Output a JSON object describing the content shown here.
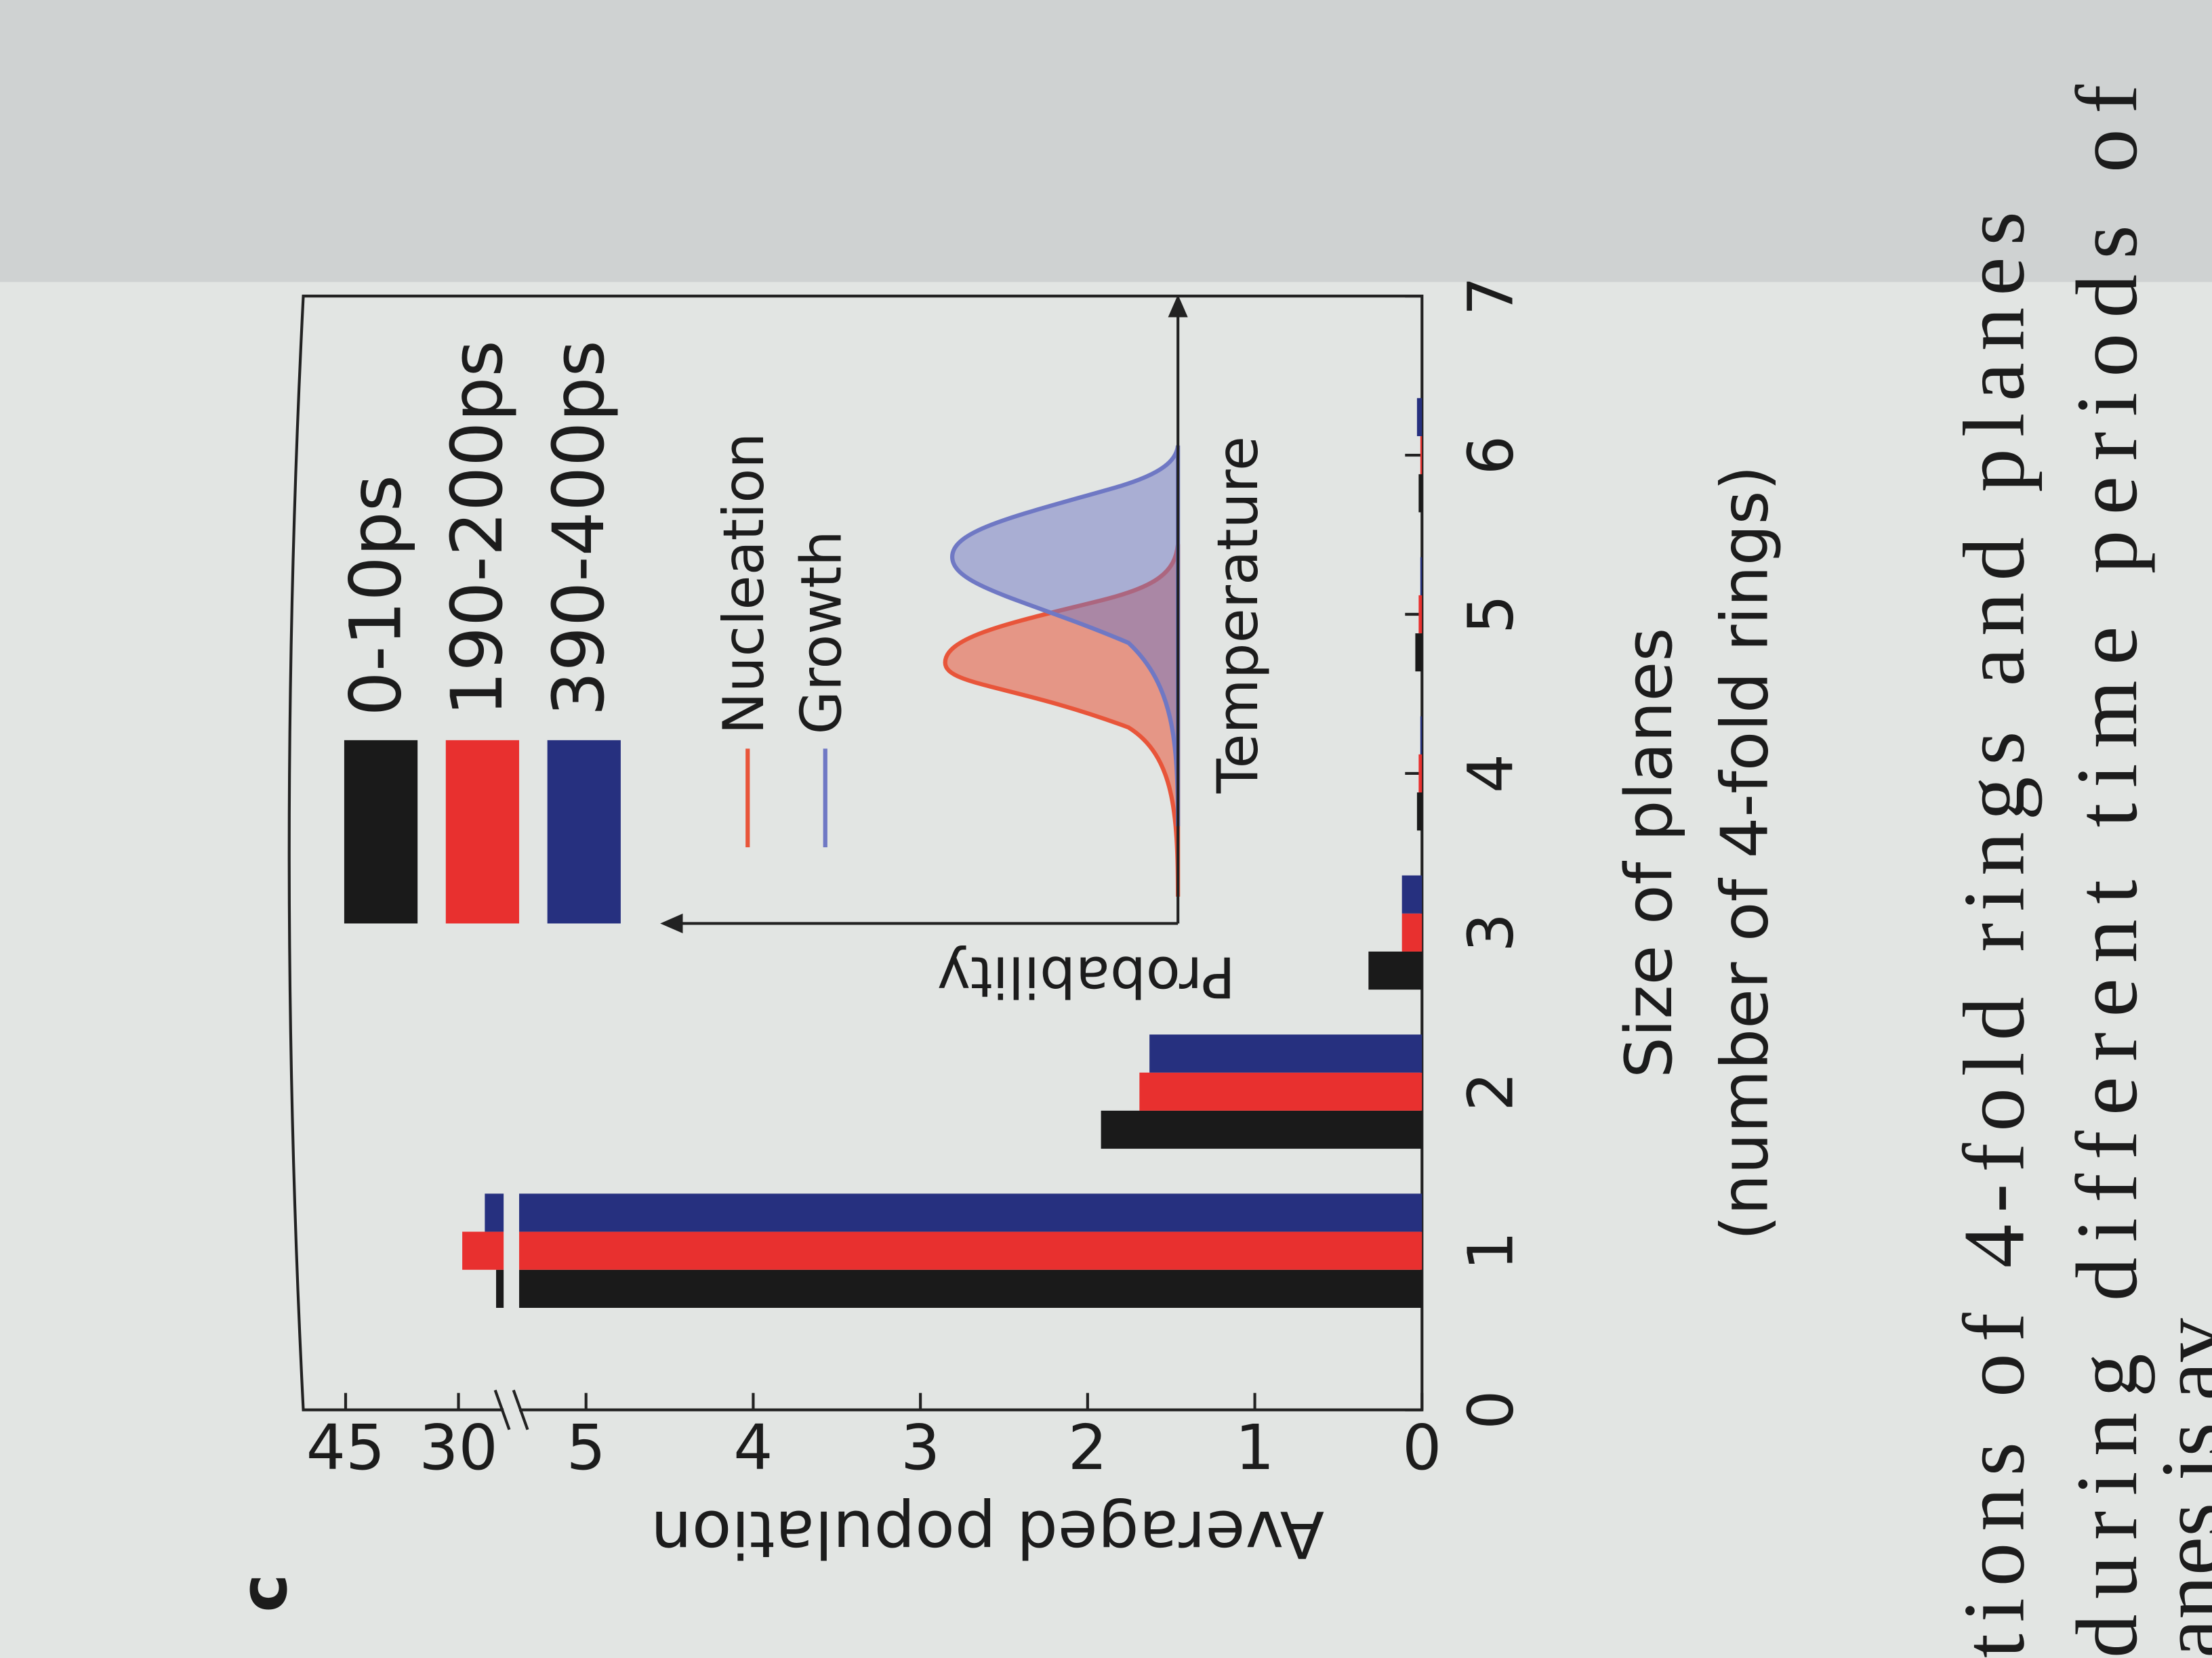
{
  "panel_label": "c",
  "chart_data": {
    "type": "bar",
    "ylabel": "Averaged population",
    "xlabel": "Size of planes",
    "xlabel2": "(number of 4-fold rings)",
    "x": [
      1,
      2,
      3,
      4,
      5,
      6
    ],
    "series": [
      {
        "name": "0-10ps",
        "color": "#1a1a1a",
        "values": [
          25,
          1.92,
          0.32,
          0.03,
          0.04,
          0.02
        ]
      },
      {
        "name": "190-200ps",
        "color": "#e8302f",
        "values": [
          29.5,
          1.69,
          0.12,
          0.02,
          0.02,
          0.01
        ]
      },
      {
        "name": "390-400ps",
        "color": "#26307f",
        "values": [
          26.5,
          1.63,
          0.12,
          0.01,
          0.01,
          0.03
        ]
      }
    ],
    "xlim": [
      0,
      7
    ],
    "xticks": [
      0,
      1,
      2,
      3,
      4,
      5,
      6,
      7
    ],
    "ylim": [
      0,
      45
    ],
    "y_break": [
      5.4,
      24
    ],
    "yticks": [
      0,
      1,
      2,
      3,
      4,
      5,
      30,
      45
    ]
  },
  "inset": {
    "ylabel": "Probability",
    "xlabel": "Temperature",
    "curves": [
      {
        "name": "Nucleation",
        "color": "#e8553a"
      },
      {
        "name": "Growth",
        "color": "#6f78c4"
      }
    ]
  },
  "caption": [
    "tions of 4-fold rings and planes",
    "during different time periods of",
    "anes is av"
  ]
}
